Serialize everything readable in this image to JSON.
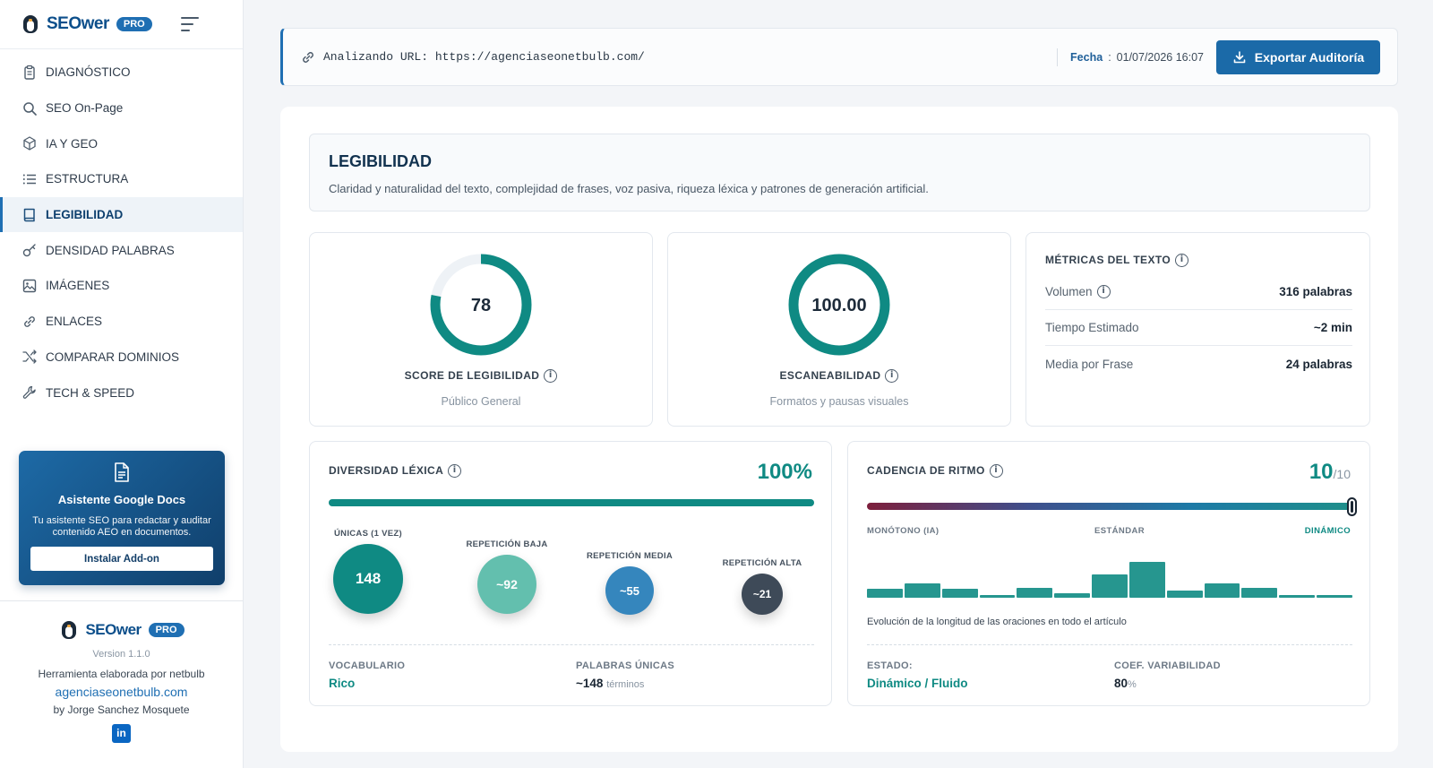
{
  "brand": {
    "name": "SEOwer",
    "badge": "PRO"
  },
  "nav": [
    {
      "label": "DIAGNÓSTICO",
      "icon": "clipboard-icon"
    },
    {
      "label": "SEO On-Page",
      "icon": "search-icon"
    },
    {
      "label": "IA Y GEO",
      "icon": "cube-icon"
    },
    {
      "label": "ESTRUCTURA",
      "icon": "list-icon"
    },
    {
      "label": "LEGIBILIDAD",
      "icon": "book-icon",
      "active": true
    },
    {
      "label": "DENSIDAD PALABRAS",
      "icon": "key-icon"
    },
    {
      "label": "IMÁGENES",
      "icon": "image-icon"
    },
    {
      "label": "ENLACES",
      "icon": "link-icon"
    },
    {
      "label": "COMPARAR DOMINIOS",
      "icon": "shuffle-icon"
    },
    {
      "label": "TECH & SPEED",
      "icon": "wrench-icon"
    }
  ],
  "promo": {
    "title": "Asistente Google Docs",
    "text": "Tu asistente SEO para redactar y auditar contenido AEO en documentos.",
    "button": "Instalar Add-on"
  },
  "footer": {
    "version": "Version 1.1.0",
    "made_by": "Herramienta elaborada por netbulb",
    "link": "agenciaseonetbulb.com",
    "author": "by Jorge Sanchez Mosquete",
    "linkedin": "in"
  },
  "topbar": {
    "url_label": "Analizando URL: https://agenciaseonetbulb.com/",
    "date_label": "Fecha",
    "date_colon": ":",
    "date_value": "01/07/2026 16:07",
    "export_label": "Exportar Auditoría"
  },
  "header": {
    "title": "LEGIBILIDAD",
    "description": "Claridad y naturalidad del texto, complejidad de frases, voz pasiva, riqueza léxica y patrones de generación artificial."
  },
  "score": {
    "value": "78",
    "fraction": 0.78,
    "title": "SCORE DE LEGIBILIDAD",
    "subtitle": "Público General"
  },
  "scan": {
    "value": "100.00",
    "fraction": 1.0,
    "title": "ESCANEABILIDAD",
    "subtitle": "Formatos y pausas visuales"
  },
  "metrics": {
    "title": "MÉTRICAS DEL TEXTO",
    "rows": [
      {
        "key": "Volumen",
        "value": "316 palabras"
      },
      {
        "key": "Tiempo Estimado",
        "value": "~2 min"
      },
      {
        "key": "Media por Frase",
        "value": "24 palabras"
      }
    ]
  },
  "lexical": {
    "title": "DIVERSIDAD LÉXICA",
    "percent": "100%",
    "fill_fraction": 1.0,
    "bubbles": [
      {
        "label": "ÚNICAS (1 VEZ)",
        "value": "148",
        "color": "#0f8a83"
      },
      {
        "label": "REPETICIÓN BAJA",
        "value": "~92",
        "color": "#63bfae"
      },
      {
        "label": "REPETICIÓN MEDIA",
        "value": "~55",
        "color": "#3586bd"
      },
      {
        "label": "REPETICIÓN ALTA",
        "value": "~21",
        "color": "#3e4a58"
      }
    ],
    "vocab_label": "VOCABULARIO",
    "vocab_value": "Rico",
    "unique_label": "PALABRAS ÚNICAS",
    "unique_value": "~148",
    "unique_unit": "términos"
  },
  "rhythm": {
    "title": "CADENCIA DE RITMO",
    "score": "10",
    "score_max": "/10",
    "position_fraction": 1.0,
    "scale_labels": [
      "MONÓTONO (IA)",
      "ESTÁNDAR",
      "DINÁMICO"
    ],
    "bars": [
      0.2,
      0.33,
      0.2,
      0.07,
      0.23,
      0.1,
      0.55,
      0.83,
      0.17,
      0.33,
      0.23,
      0.07,
      0.07
    ],
    "caption": "Evolución de la longitud de las oraciones en todo el artículo",
    "state_label": "ESTADO:",
    "state_value": "Dinámico / Fluido",
    "coef_label": "COEF. VARIABILIDAD",
    "coef_value": "80",
    "coef_unit": "%"
  },
  "colors": {
    "accent": "#1f6fb3",
    "teal": "#0f8a83",
    "ring_track": "#eef2f6"
  }
}
